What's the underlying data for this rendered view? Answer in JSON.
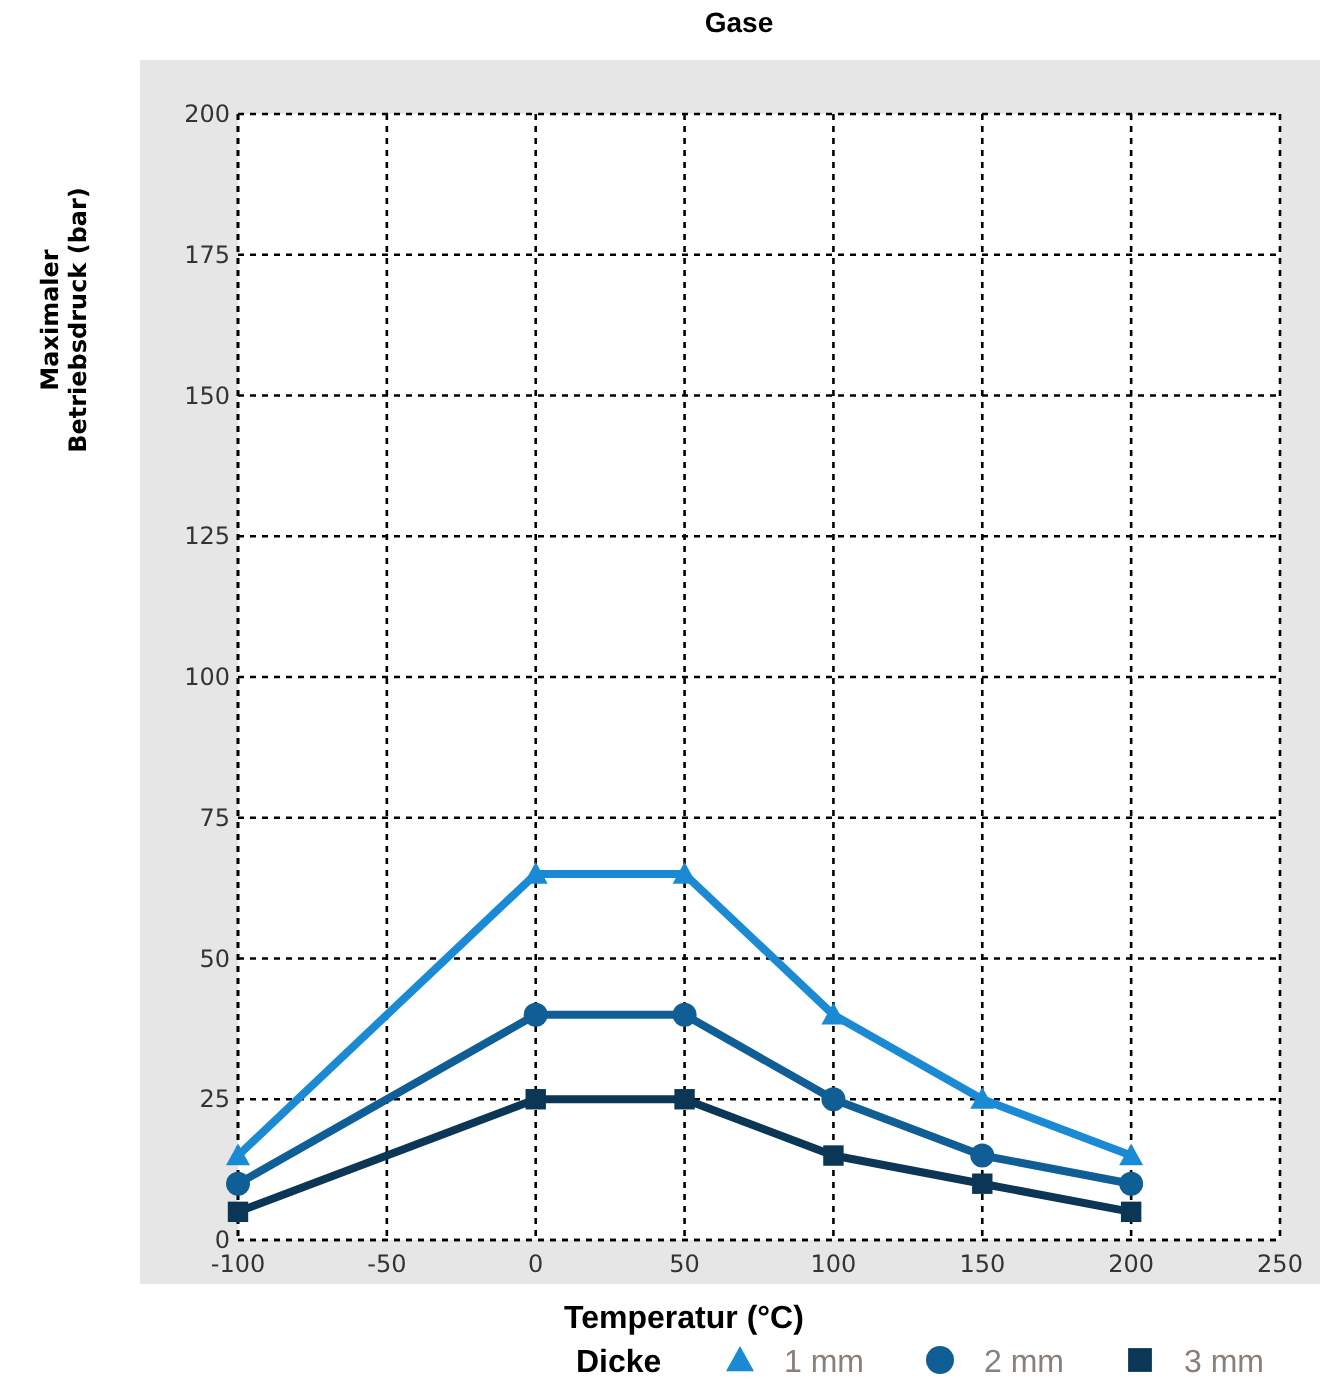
{
  "chart_data": {
    "type": "line",
    "title": "Gase",
    "xlabel": "Temperatur (°C)",
    "ylabel": "Maximaler\nBetriebsdruck (bar)",
    "legend_title": "Dicke",
    "x": [
      -100,
      0,
      50,
      100,
      150,
      200
    ],
    "series": [
      {
        "name": "1 mm",
        "color": "#1a8ad4",
        "marker": "triangle",
        "values": [
          15,
          65,
          65,
          40,
          25,
          15
        ]
      },
      {
        "name": "2 mm",
        "color": "#0f5f96",
        "marker": "circle",
        "values": [
          10,
          40,
          40,
          25,
          15,
          10
        ]
      },
      {
        "name": "3 mm",
        "color": "#0b3656",
        "marker": "square",
        "values": [
          5,
          25,
          25,
          15,
          10,
          5
        ]
      }
    ],
    "xlim": [
      -100,
      250
    ],
    "xticks": [
      -100,
      -50,
      0,
      50,
      100,
      150,
      200,
      250
    ],
    "ylim": [
      0,
      200
    ],
    "yticks": [
      0,
      25,
      50,
      75,
      100,
      125,
      150,
      175,
      200
    ],
    "grid": true,
    "legend": "bottom",
    "line_style": "solid"
  }
}
